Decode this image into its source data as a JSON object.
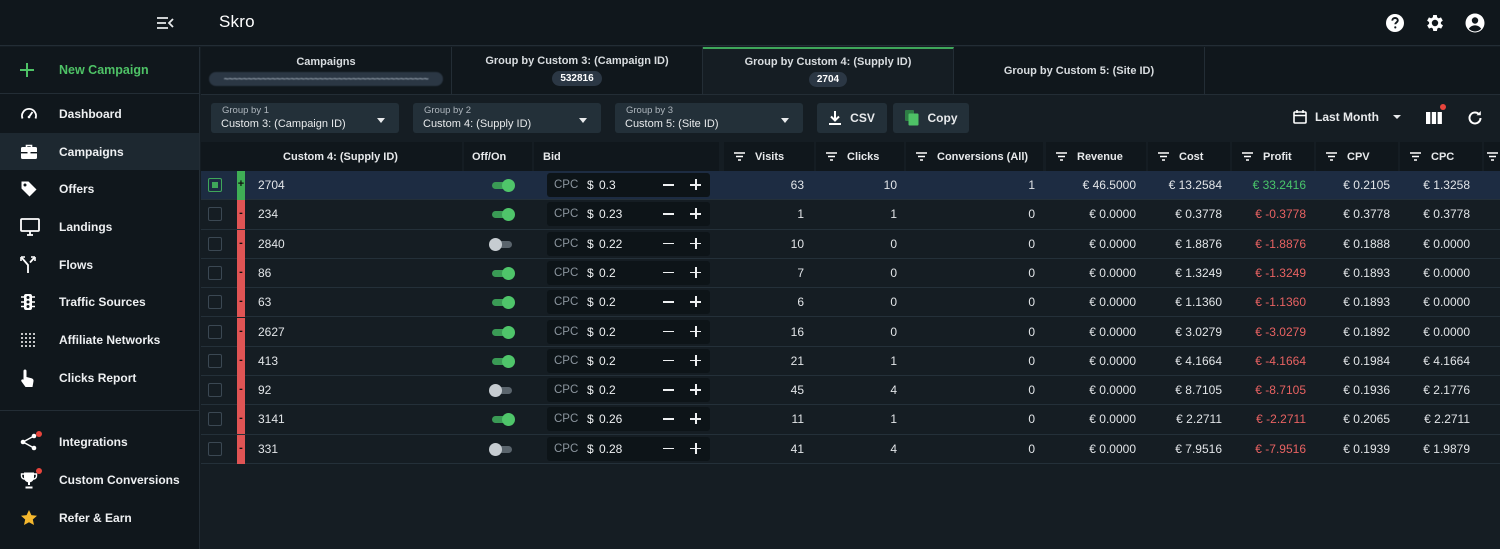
{
  "app": {
    "name": "Skro"
  },
  "sidebar": {
    "new_campaign": "New Campaign",
    "items": [
      {
        "label": "Dashboard",
        "icon": "speedometer-icon"
      },
      {
        "label": "Campaigns",
        "icon": "briefcase-icon",
        "active": true
      },
      {
        "label": "Offers",
        "icon": "tag-icon"
      },
      {
        "label": "Landings",
        "icon": "monitor-icon"
      },
      {
        "label": "Flows",
        "icon": "flow-split-icon"
      },
      {
        "label": "Traffic Sources",
        "icon": "traffic-light-icon"
      },
      {
        "label": "Affiliate Networks",
        "icon": "dots-grid-icon"
      },
      {
        "label": "Clicks Report",
        "icon": "hand-pointer-icon"
      }
    ],
    "bottom_items": [
      {
        "label": "Integrations",
        "icon": "share-icon",
        "notification": true
      },
      {
        "label": "Custom Conversions",
        "icon": "trophy-icon",
        "notification": true
      },
      {
        "label": "Refer & Earn",
        "icon": "star-icon"
      }
    ]
  },
  "tabs": [
    {
      "title": "Campaigns",
      "badge": "",
      "blurred": true
    },
    {
      "title": "Group by Custom 3: (Campaign ID)",
      "badge": "532816"
    },
    {
      "title": "Group by Custom 4: (Supply ID)",
      "badge": "2704",
      "active": true
    },
    {
      "title": "Group by Custom 5: (Site ID)",
      "badge": ""
    }
  ],
  "toolbar": {
    "group1": {
      "caption": "Group by 1",
      "value": "Custom 3: (Campaign ID)"
    },
    "group2": {
      "caption": "Group by 2",
      "value": "Custom 4: (Supply ID)"
    },
    "group3": {
      "caption": "Group by 3",
      "value": "Custom 5: (Site ID)"
    },
    "csv_label": "CSV",
    "copy_label": "Copy",
    "period_label": "Last Month"
  },
  "table": {
    "columns": [
      "Custom 4: (Supply ID)",
      "Off/On",
      "Bid",
      "Visits",
      "Clicks",
      "Conversions (All)",
      "Revenue",
      "Cost",
      "Profit",
      "CPV",
      "CPC"
    ],
    "rows": [
      {
        "id": "2704",
        "marker": "+",
        "on": true,
        "bid_type": "CPC",
        "currency": "$",
        "bid": "0.3",
        "visits": "63",
        "clicks": "10",
        "conversions": "1",
        "revenue": "€ 46.5000",
        "cost": "€ 13.2584",
        "profit": "€ 33.2416",
        "profit_sign": "pos",
        "cpv": "€ 0.2105",
        "cpc": "€ 1.3258",
        "selected": true
      },
      {
        "id": "234",
        "marker": "-",
        "on": true,
        "bid_type": "CPC",
        "currency": "$",
        "bid": "0.23",
        "visits": "1",
        "clicks": "1",
        "conversions": "0",
        "revenue": "€ 0.0000",
        "cost": "€ 0.3778",
        "profit": "€ -0.3778",
        "profit_sign": "neg",
        "cpv": "€ 0.3778",
        "cpc": "€ 0.3778"
      },
      {
        "id": "2840",
        "marker": "-",
        "on": false,
        "bid_type": "CPC",
        "currency": "$",
        "bid": "0.22",
        "visits": "10",
        "clicks": "0",
        "conversions": "0",
        "revenue": "€ 0.0000",
        "cost": "€ 1.8876",
        "profit": "€ -1.8876",
        "profit_sign": "neg",
        "cpv": "€ 0.1888",
        "cpc": "€ 0.0000"
      },
      {
        "id": "86",
        "marker": "-",
        "on": true,
        "bid_type": "CPC",
        "currency": "$",
        "bid": "0.2",
        "visits": "7",
        "clicks": "0",
        "conversions": "0",
        "revenue": "€ 0.0000",
        "cost": "€ 1.3249",
        "profit": "€ -1.3249",
        "profit_sign": "neg",
        "cpv": "€ 0.1893",
        "cpc": "€ 0.0000"
      },
      {
        "id": "63",
        "marker": "-",
        "on": true,
        "bid_type": "CPC",
        "currency": "$",
        "bid": "0.2",
        "visits": "6",
        "clicks": "0",
        "conversions": "0",
        "revenue": "€ 0.0000",
        "cost": "€ 1.1360",
        "profit": "€ -1.1360",
        "profit_sign": "neg",
        "cpv": "€ 0.1893",
        "cpc": "€ 0.0000"
      },
      {
        "id": "2627",
        "marker": "-",
        "on": true,
        "bid_type": "CPC",
        "currency": "$",
        "bid": "0.2",
        "visits": "16",
        "clicks": "0",
        "conversions": "0",
        "revenue": "€ 0.0000",
        "cost": "€ 3.0279",
        "profit": "€ -3.0279",
        "profit_sign": "neg",
        "cpv": "€ 0.1892",
        "cpc": "€ 0.0000"
      },
      {
        "id": "413",
        "marker": "-",
        "on": true,
        "bid_type": "CPC",
        "currency": "$",
        "bid": "0.2",
        "visits": "21",
        "clicks": "1",
        "conversions": "0",
        "revenue": "€ 0.0000",
        "cost": "€ 4.1664",
        "profit": "€ -4.1664",
        "profit_sign": "neg",
        "cpv": "€ 0.1984",
        "cpc": "€ 4.1664"
      },
      {
        "id": "92",
        "marker": "-",
        "on": false,
        "bid_type": "CPC",
        "currency": "$",
        "bid": "0.2",
        "visits": "45",
        "clicks": "4",
        "conversions": "0",
        "revenue": "€ 0.0000",
        "cost": "€ 8.7105",
        "profit": "€ -8.7105",
        "profit_sign": "neg",
        "cpv": "€ 0.1936",
        "cpc": "€ 2.1776"
      },
      {
        "id": "3141",
        "marker": "-",
        "on": true,
        "bid_type": "CPC",
        "currency": "$",
        "bid": "0.26",
        "visits": "11",
        "clicks": "1",
        "conversions": "0",
        "revenue": "€ 0.0000",
        "cost": "€ 2.2711",
        "profit": "€ -2.2711",
        "profit_sign": "neg",
        "cpv": "€ 0.2065",
        "cpc": "€ 2.2711"
      },
      {
        "id": "331",
        "marker": "-",
        "on": false,
        "bid_type": "CPC",
        "currency": "$",
        "bid": "0.28",
        "visits": "41",
        "clicks": "4",
        "conversions": "0",
        "revenue": "€ 0.0000",
        "cost": "€ 7.9516",
        "profit": "€ -7.9516",
        "profit_sign": "neg",
        "cpv": "€ 0.1939",
        "cpc": "€ 1.9879"
      }
    ]
  },
  "colors": {
    "accent_green": "#4ec266",
    "negative_red": "#e86262",
    "background": "#151d23",
    "panel": "#10171c",
    "selected_row": "#1d2c42"
  }
}
